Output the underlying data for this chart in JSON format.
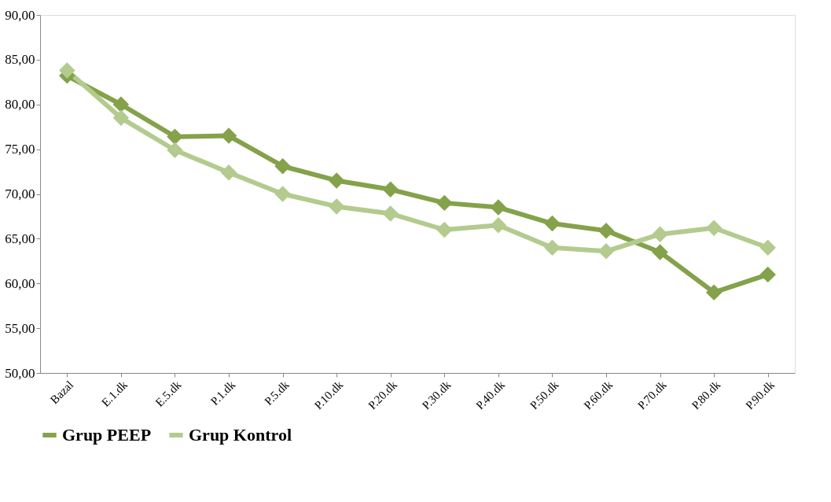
{
  "chart_data": {
    "type": "line",
    "categories": [
      "Bazal",
      "E.1.dk",
      "E.5.dk",
      "P.1.dk",
      "P.5.dk",
      "P.10.dk",
      "P.20.dk",
      "P.30.dk",
      "P.40.dk",
      "P.50.dk",
      "P.60.dk",
      "P.70.dk",
      "P.80.dk",
      "P.90.dk"
    ],
    "series": [
      {
        "name": "Grup PEEP",
        "color": "#84a24a",
        "values": [
          83.2,
          80.0,
          76.4,
          76.5,
          73.1,
          71.5,
          70.5,
          69.0,
          68.5,
          66.7,
          65.9,
          63.5,
          59.0,
          61.0
        ]
      },
      {
        "name": "Grup Kontrol",
        "color": "#b3cb8e",
        "values": [
          83.8,
          78.5,
          74.9,
          72.4,
          70.0,
          68.6,
          67.8,
          66.0,
          66.5,
          64.0,
          63.6,
          65.5,
          66.2,
          64.0
        ]
      }
    ],
    "ylim": [
      50,
      90
    ],
    "yticks": [
      {
        "value": 50,
        "label": "50,00"
      },
      {
        "value": 55,
        "label": "55,00"
      },
      {
        "value": 60,
        "label": "60,00"
      },
      {
        "value": 65,
        "label": "65,00"
      },
      {
        "value": 70,
        "label": "70,00"
      },
      {
        "value": 75,
        "label": "75,00"
      },
      {
        "value": 80,
        "label": "80,00"
      },
      {
        "value": 85,
        "label": "85,00"
      },
      {
        "value": 90,
        "label": "90,00"
      }
    ],
    "grid": false,
    "legend": "bottom",
    "marker": "diamond",
    "line_style": "solid"
  }
}
